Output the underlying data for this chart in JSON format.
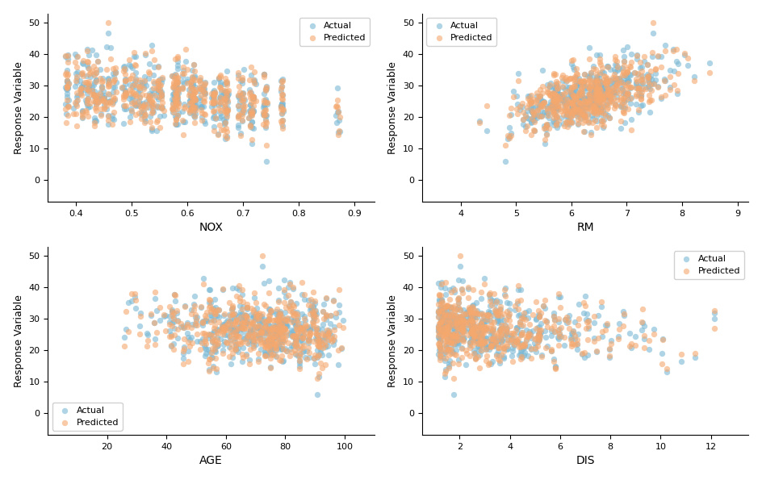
{
  "subplots": [
    {
      "xlabel": "NOX",
      "xlim": [
        0.35,
        0.935
      ],
      "xticks": [
        0.4,
        0.5,
        0.6,
        0.7,
        0.8,
        0.9
      ]
    },
    {
      "xlabel": "RM",
      "xlim": [
        3.3,
        9.2
      ],
      "xticks": [
        4,
        5,
        6,
        7,
        8,
        9
      ]
    },
    {
      "xlabel": "AGE",
      "xlim": [
        0,
        110
      ],
      "xticks": [
        20,
        40,
        60,
        80,
        100
      ]
    },
    {
      "xlabel": "DIS",
      "xlim": [
        0.5,
        13.5
      ],
      "xticks": [
        2,
        4,
        6,
        8,
        10,
        12
      ]
    }
  ],
  "ylabel": "Response Variable",
  "ylim": [
    -7,
    53
  ],
  "yticks": [
    0,
    10,
    20,
    30,
    40,
    50
  ],
  "actual_color": "#7ab8d4",
  "predicted_color": "#f5a86e",
  "alpha": 0.6,
  "marker_size": 28,
  "legend_positions": [
    "upper right",
    "upper left",
    "lower left",
    "upper right"
  ],
  "figsize": [
    9.44,
    5.95
  ],
  "dpi": 100,
  "seed": 0
}
